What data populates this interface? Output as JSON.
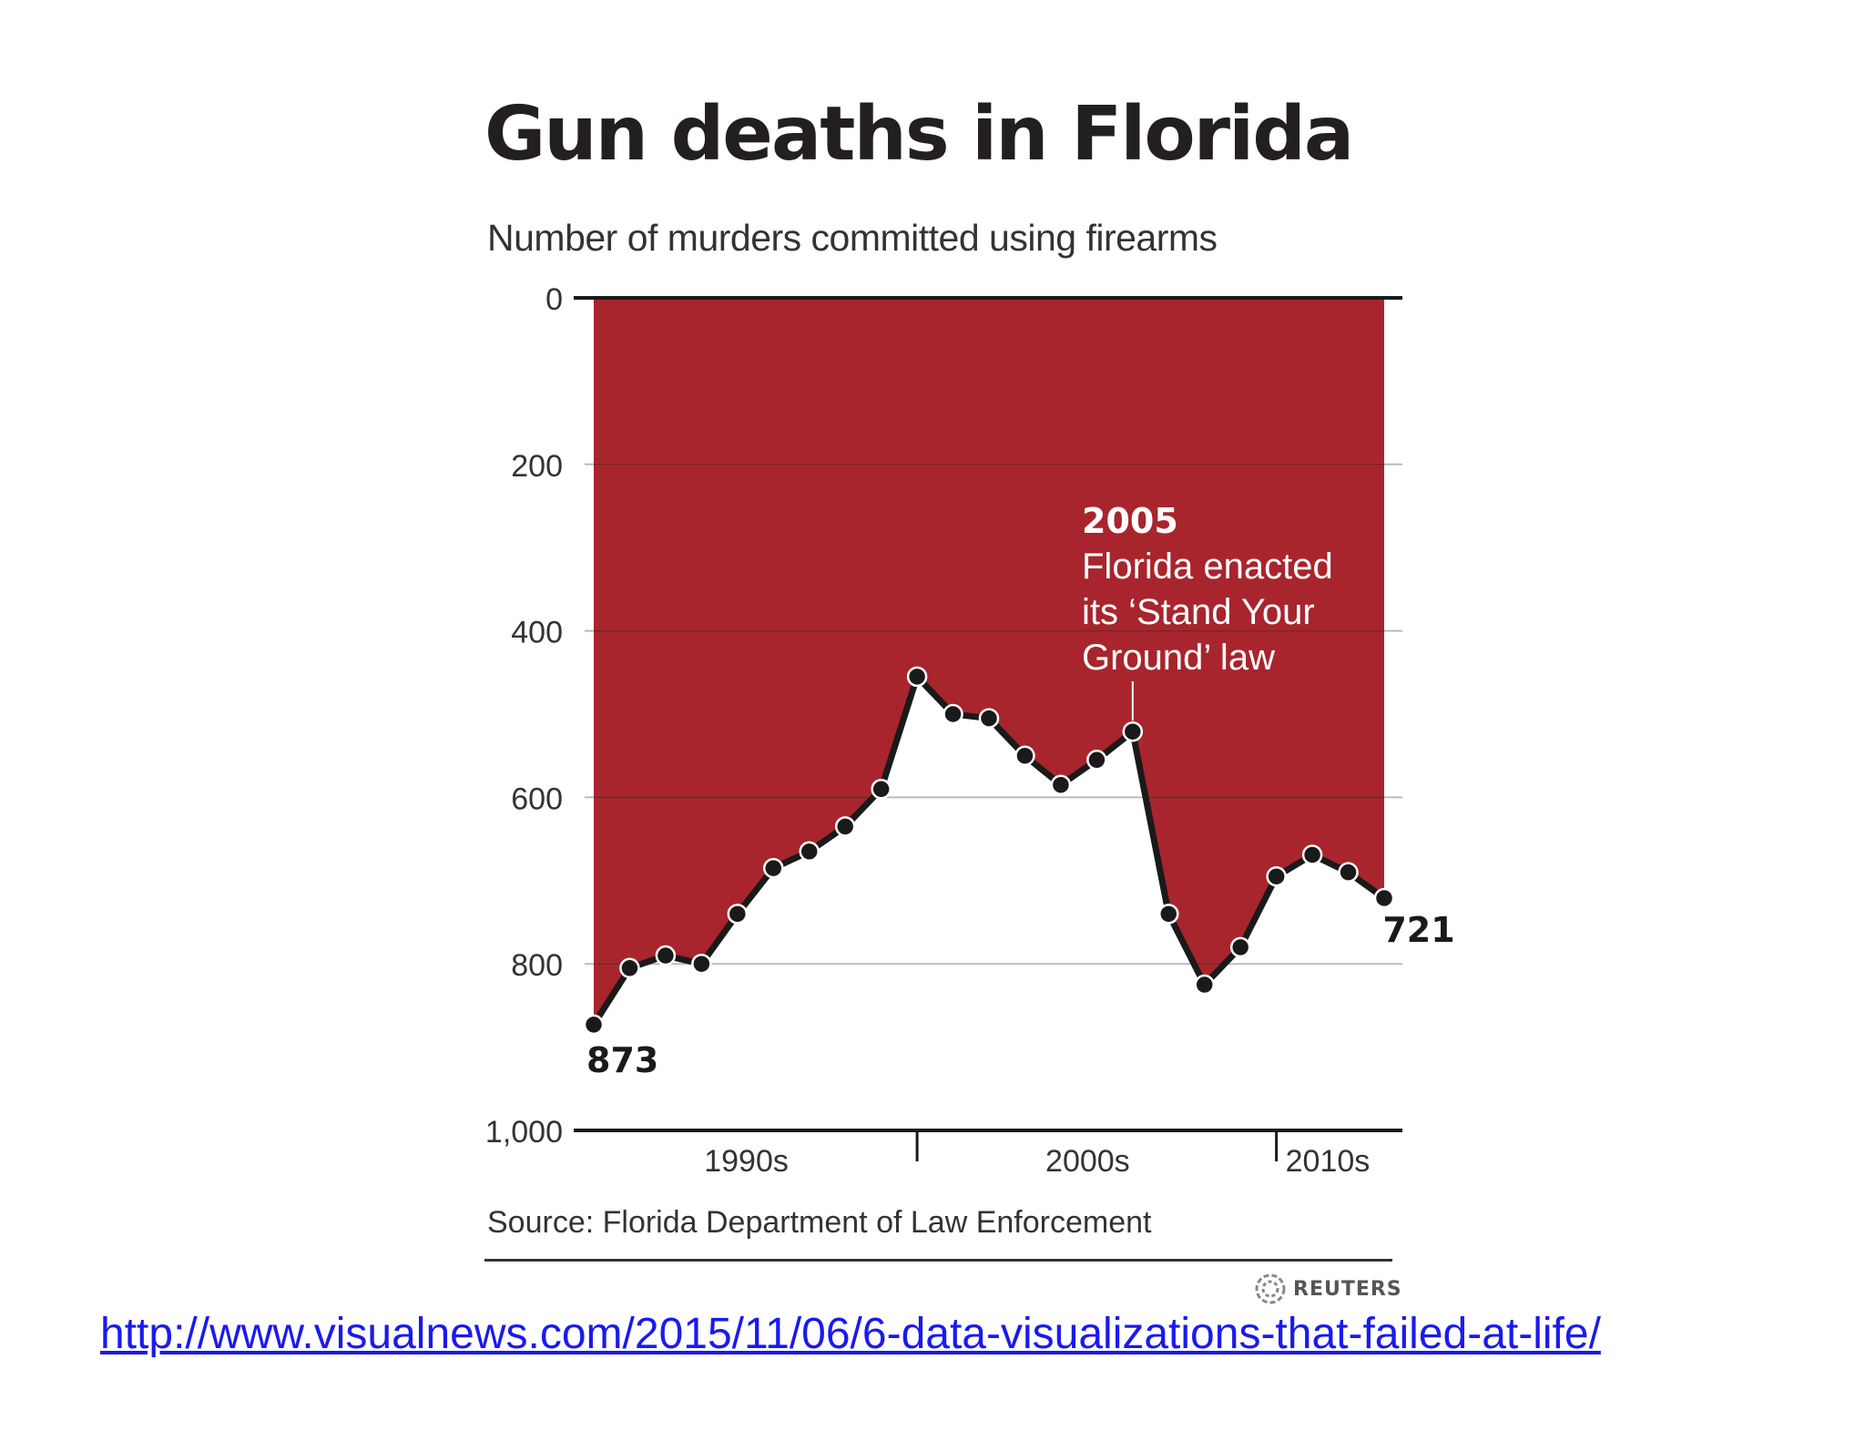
{
  "chart_data": {
    "type": "area",
    "title": "Gun deaths in Florida",
    "subtitle": "Number of murders committed using firearms",
    "y_axis": {
      "ylim": [
        0,
        1000
      ],
      "inverted": true,
      "ticks": [
        0,
        200,
        400,
        600,
        800,
        1000
      ],
      "tick_labels": [
        "0",
        "200",
        "400",
        "600",
        "800",
        "1,000"
      ]
    },
    "x_axis": {
      "range": [
        1990,
        2012
      ],
      "groups": [
        {
          "label": "1990s",
          "start": 1990,
          "end": 1999
        },
        {
          "label": "2000s",
          "start": 1999,
          "end": 2009
        },
        {
          "label": "2010s",
          "start": 2009,
          "end": 2012
        }
      ]
    },
    "grid": true,
    "series": [
      {
        "x": [
          1990,
          1991,
          1992,
          1993,
          1994,
          1995,
          1996,
          1997,
          1998,
          1999,
          2000,
          2001,
          2002,
          2003,
          2004,
          2005,
          2006,
          2007,
          2008,
          2009,
          2010,
          2011,
          2012
        ],
        "values": [
          873,
          805,
          790,
          800,
          740,
          685,
          665,
          635,
          590,
          455,
          500,
          505,
          550,
          585,
          555,
          521,
          740,
          825,
          780,
          695,
          669,
          690,
          721
        ]
      }
    ],
    "data_labels": [
      {
        "x": 1990,
        "text": "873"
      },
      {
        "x": 2012,
        "text": "721"
      }
    ],
    "annotation": {
      "x": 2005,
      "year": "2005",
      "lines": [
        "Florida enacted",
        "its ‘Stand Your",
        "Ground’ law"
      ]
    },
    "colors": {
      "fill": "#a8252d",
      "line": "#1a1a1a",
      "marker": "#1a1a1a",
      "grid_on_red": "#7e1b21",
      "grid_on_white": "#bbbbbb",
      "axis": "#1a1a1a",
      "annotation_text": "#ffffff"
    },
    "source": "Source: Florida Department of Law Enforcement"
  },
  "publisher": {
    "name": "REUTERS",
    "icon": "reuters-logo-icon"
  },
  "link": {
    "text": "http://www.visualnews.com/2015/11/06/6-data-visualizations-that-failed-at-life/"
  }
}
